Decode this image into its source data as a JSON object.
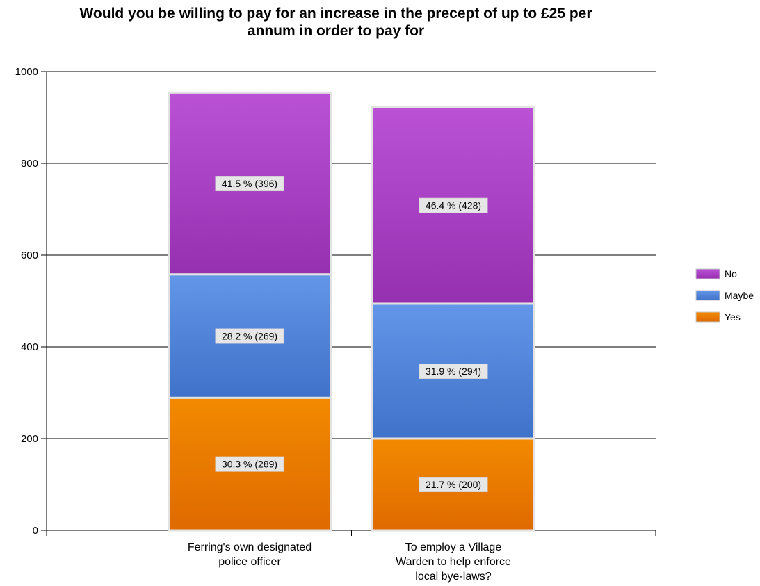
{
  "chart_data": {
    "type": "bar",
    "stacked": true,
    "title": [
      "Would you be willing to pay for an increase in the precept of up to £25 per",
      "annum in order to pay for"
    ],
    "xlabel": "",
    "ylabel": "",
    "ylim": [
      0,
      1000
    ],
    "yticks": [
      0,
      200,
      400,
      600,
      800,
      1000
    ],
    "grid": true,
    "legend_position": "right",
    "categories": [
      [
        "Ferring's own designated",
        "police officer"
      ],
      [
        "To employ a Village",
        "Warden to help enforce",
        "local bye-laws?"
      ]
    ],
    "series": [
      {
        "name": "Yes",
        "values": [
          289,
          200
        ],
        "labels": [
          "30.3 % (289)",
          "21.7 % (200)"
        ],
        "color": "#f28a00",
        "color_dark": "#df6a00"
      },
      {
        "name": "Maybe",
        "values": [
          269,
          294
        ],
        "labels": [
          "28.2 % (269)",
          "31.9 % (294)"
        ],
        "color": "#6396e8",
        "color_dark": "#3f72c9"
      },
      {
        "name": "No",
        "values": [
          396,
          428
        ],
        "labels": [
          "41.5 % (396)",
          "46.4 % (428)"
        ],
        "color": "#bb52d6",
        "color_dark": "#9530b0"
      }
    ],
    "legend_order": [
      "No",
      "Maybe",
      "Yes"
    ]
  }
}
